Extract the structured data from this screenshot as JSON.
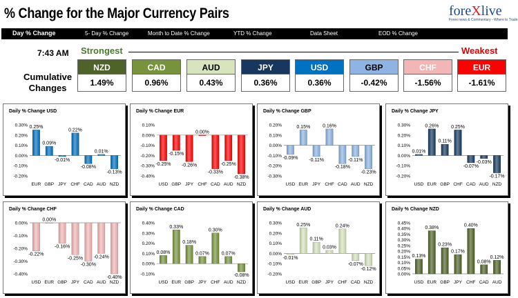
{
  "header": {
    "title": "% Change for the Major Currency Pairs",
    "logo_text_a": "fore",
    "logo_text_b": "X",
    "logo_text_c": "live",
    "logo_tagline": "Forex news & Commentary - Where to Trade"
  },
  "nav": {
    "items": [
      "Day % Change",
      "5- Day % Change",
      "Month to Date % Change",
      "YTD % Change",
      "Data Sheet",
      "EOD % Change"
    ],
    "active": "Day % Change"
  },
  "summary": {
    "time": "7:43 AM",
    "strongest_label": "Strongest",
    "weakest_label": "Weakest",
    "cumulative_label_1": "Cumulative",
    "cumulative_label_2": "Changes",
    "currencies": [
      {
        "name": "NZD",
        "value": "1.49%",
        "bg": "#4f6228",
        "fg": "#ffffff"
      },
      {
        "name": "CAD",
        "value": "0.96%",
        "bg": "#77933c",
        "fg": "#ffffff"
      },
      {
        "name": "AUD",
        "value": "0.43%",
        "bg": "#d7e4bd",
        "fg": "#000000"
      },
      {
        "name": "JPY",
        "value": "0.36%",
        "bg": "#17375e",
        "fg": "#ffffff"
      },
      {
        "name": "USD",
        "value": "0.36%",
        "bg": "#0070c0",
        "fg": "#ffffff"
      },
      {
        "name": "GBP",
        "value": "-0.42%",
        "bg": "#8eb4e3",
        "fg": "#000000"
      },
      {
        "name": "CHF",
        "value": "-1.56%",
        "bg": "#f2b6b6",
        "fg": "#ffffff"
      },
      {
        "name": "EUR",
        "value": "-1.61%",
        "bg": "#ff0000",
        "fg": "#ffffff"
      }
    ]
  },
  "chart_data": [
    {
      "type": "bar",
      "title": "Daily % Change USD",
      "categories": [
        "EUR",
        "GBP",
        "JPY",
        "CHF",
        "CAD",
        "AUD",
        "NZD"
      ],
      "values": [
        0.25,
        0.09,
        -0.01,
        0.22,
        -0.08,
        0.01,
        -0.13
      ],
      "labels": [
        "0.25%",
        "0.09%",
        "-0.01%",
        "0.22%",
        "-0.08%",
        "0.01%",
        "-0.13%"
      ],
      "ylim": [
        -0.2,
        0.3
      ],
      "yticks": [
        "0.30%",
        "0.20%",
        "0.10%",
        "0.00%",
        "-0.10%",
        "-0.20%"
      ],
      "color": "#0070c0"
    },
    {
      "type": "bar",
      "title": "Daily % Change EUR",
      "categories": [
        "USD",
        "GBP",
        "JPY",
        "CHF",
        "CAD",
        "AUD",
        "NZD"
      ],
      "values": [
        -0.25,
        -0.15,
        -0.26,
        0.0,
        -0.33,
        -0.25,
        -0.38
      ],
      "labels": [
        "-0.25%",
        "-0.15%",
        "-0.26%",
        "0.00%",
        "-0.33%",
        "-0.25%",
        "-0.38%"
      ],
      "ylim": [
        -0.4,
        0.1
      ],
      "yticks": [
        "0.10%",
        "0.00%",
        "-0.10%",
        "-0.20%",
        "-0.30%",
        "-0.40%"
      ],
      "color": "#ff0000"
    },
    {
      "type": "bar",
      "title": "Daily % Change GBP",
      "categories": [
        "USD",
        "EUR",
        "JPY",
        "CHF",
        "CAD",
        "AUD",
        "NZD"
      ],
      "values": [
        -0.09,
        0.15,
        -0.11,
        0.16,
        -0.18,
        -0.11,
        -0.23
      ],
      "labels": [
        "-0.09%",
        "0.15%",
        "-0.11%",
        "0.16%",
        "-0.18%",
        "-0.11%",
        "-0.23%"
      ],
      "ylim": [
        -0.3,
        0.2
      ],
      "yticks": [
        "0.20%",
        "0.10%",
        "0.00%",
        "-0.10%",
        "-0.20%",
        "-0.30%"
      ],
      "color": "#8eb4e3"
    },
    {
      "type": "bar",
      "title": "Daily % Change JPY",
      "categories": [
        "USD",
        "EUR",
        "GBP",
        "CHF",
        "CAD",
        "AUD",
        "NZD"
      ],
      "values": [
        0.01,
        0.26,
        0.11,
        0.25,
        -0.07,
        -0.03,
        -0.17
      ],
      "labels": [
        "0.01%",
        "0.26%",
        "0.11%",
        "0.25%",
        "-0.07%",
        "-0.03%",
        "-0.17%"
      ],
      "ylim": [
        -0.2,
        0.3
      ],
      "yticks": [
        "0.30%",
        "0.20%",
        "0.10%",
        "0.00%",
        "-0.10%",
        "-0.20%"
      ],
      "color": "#17375e"
    },
    {
      "type": "bar",
      "title": "Daily % Change CHF",
      "categories": [
        "USD",
        "EUR",
        "GBP",
        "JPY",
        "CAD",
        "AUD",
        "NZD"
      ],
      "values": [
        -0.22,
        0.0,
        -0.16,
        -0.25,
        -0.3,
        -0.24,
        -0.4
      ],
      "labels": [
        "-0.22%",
        "0.00%",
        "-0.16%",
        "-0.25%",
        "-0.30%",
        "-0.24%",
        "-0.40%"
      ],
      "ylim": [
        -0.4,
        0.0
      ],
      "yticks": [
        "0.00%",
        "-0.10%",
        "-0.20%",
        "-0.30%",
        "-0.40%"
      ],
      "color": "#f2b6b6"
    },
    {
      "type": "bar",
      "title": "Daily % Change CAD",
      "categories": [
        "USD",
        "EUR",
        "GBP",
        "JPY",
        "CHF",
        "AUD",
        "NZD"
      ],
      "values": [
        0.08,
        0.33,
        0.18,
        0.07,
        0.3,
        0.07,
        -0.08
      ],
      "labels": [
        "0.08%",
        "0.33%",
        "0.18%",
        "0.07%",
        "0.30%",
        "0.07%",
        "-0.08%"
      ],
      "ylim": [
        -0.1,
        0.4
      ],
      "yticks": [
        "0.40%",
        "0.30%",
        "0.20%",
        "0.10%",
        "0.00%",
        "-0.10%"
      ],
      "color": "#77933c"
    },
    {
      "type": "bar",
      "title": "Daily % Change AUD",
      "categories": [
        "USD",
        "EUR",
        "GBP",
        "JPY",
        "CHF",
        "CAD",
        "NZD"
      ],
      "values": [
        -0.01,
        0.25,
        0.11,
        0.03,
        0.24,
        -0.07,
        -0.12
      ],
      "labels": [
        "-0.01%",
        "0.25%",
        "0.11%",
        "0.03%",
        "0.24%",
        "-0.07%",
        "-0.12%"
      ],
      "ylim": [
        -0.2,
        0.3
      ],
      "yticks": [
        "0.30%",
        "0.20%",
        "0.10%",
        "0.00%",
        "-0.10%",
        "-0.20%"
      ],
      "color": "#d7e4bd"
    },
    {
      "type": "bar",
      "title": "Daily % Change NZD",
      "categories": [
        "USD",
        "EUR",
        "GBP",
        "JPY",
        "CHF",
        "CAD",
        "AUD"
      ],
      "values": [
        0.13,
        0.38,
        0.23,
        0.17,
        0.4,
        0.08,
        0.12
      ],
      "labels": [
        "0.13%",
        "0.38%",
        "0.23%",
        "0.17%",
        "0.40%",
        "0.08%",
        "0.12%"
      ],
      "ylim": [
        0.0,
        0.45
      ],
      "yticks": [
        "0.45%",
        "0.40%",
        "0.35%",
        "0.30%",
        "0.25%",
        "0.20%",
        "0.15%",
        "0.10%",
        "0.05%",
        "0.00%"
      ],
      "color": "#4f6228"
    }
  ]
}
